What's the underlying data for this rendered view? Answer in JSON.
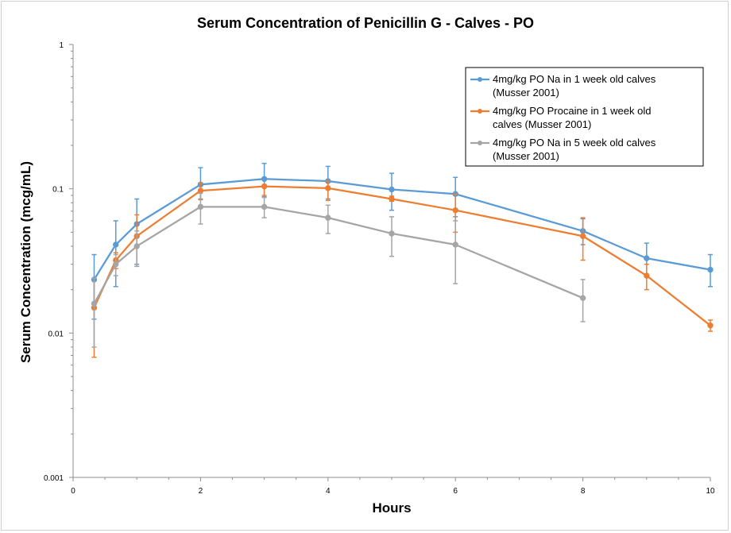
{
  "chart_data": {
    "type": "line",
    "title": "Serum Concentration  of Penicillin  G - Calves - PO",
    "xlabel": "Hours",
    "ylabel": "Serum Concentration (mcg/mL)",
    "xlim": [
      0,
      10
    ],
    "ylim": [
      0.001,
      1
    ],
    "yscale": "log",
    "xticks": [
      "0",
      "2",
      "4",
      "6",
      "8",
      "10"
    ],
    "yticks": [
      "0.001",
      "0.01",
      "0.1",
      "1"
    ],
    "grid": false,
    "legend_position": "top-right",
    "series": [
      {
        "name_lines": [
          "4mg/kg PO Na in 1 week old calves",
          "(Musser 2001)"
        ],
        "color": "#5b9bd5",
        "x": [
          0.33,
          0.67,
          1,
          2,
          3,
          4,
          5,
          6,
          8,
          9,
          10
        ],
        "y": [
          0.0235,
          0.041,
          0.057,
          0.107,
          0.117,
          0.113,
          0.099,
          0.092,
          0.051,
          0.033,
          0.0275
        ],
        "err_low": [
          0.0125,
          0.021,
          0.03,
          0.085,
          0.088,
          0.085,
          0.071,
          0.064,
          0.041,
          0.025,
          0.021
        ],
        "err_high": [
          0.035,
          0.06,
          0.085,
          0.14,
          0.15,
          0.143,
          0.128,
          0.12,
          0.062,
          0.042,
          0.035
        ]
      },
      {
        "name_lines": [
          "4mg/kg PO Procaine in 1 week old",
          "calves (Musser 2001)"
        ],
        "color": "#ed7d31",
        "x": [
          0.33,
          0.67,
          1,
          2,
          3,
          4,
          5,
          6,
          8,
          9,
          10
        ],
        "y": [
          0.015,
          0.032,
          0.047,
          0.097,
          0.104,
          0.101,
          0.085,
          0.071,
          0.047,
          0.025,
          0.0113
        ],
        "err_low": [
          0.0068,
          0.028,
          0.029,
          0.084,
          0.09,
          0.083,
          0.082,
          0.05,
          0.032,
          0.02,
          0.0103
        ],
        "err_high": [
          0.024,
          0.036,
          0.066,
          0.11,
          0.107,
          0.113,
          0.089,
          0.092,
          0.063,
          0.03,
          0.0123
        ]
      },
      {
        "name_lines": [
          "4mg/kg PO Na in 5 week old calves",
          "(Musser 2001)"
        ],
        "color": "#a5a5a5",
        "x": [
          0.33,
          0.67,
          1,
          2,
          3,
          4,
          5,
          6,
          8
        ],
        "y": [
          0.016,
          0.03,
          0.04,
          0.075,
          0.075,
          0.063,
          0.049,
          0.041,
          0.0175
        ],
        "err_low": [
          0.008,
          0.025,
          0.029,
          0.057,
          0.063,
          0.049,
          0.034,
          0.022,
          0.012
        ],
        "err_high": [
          0.024,
          0.035,
          0.051,
          0.093,
          0.087,
          0.077,
          0.064,
          0.06,
          0.0235
        ]
      }
    ]
  }
}
